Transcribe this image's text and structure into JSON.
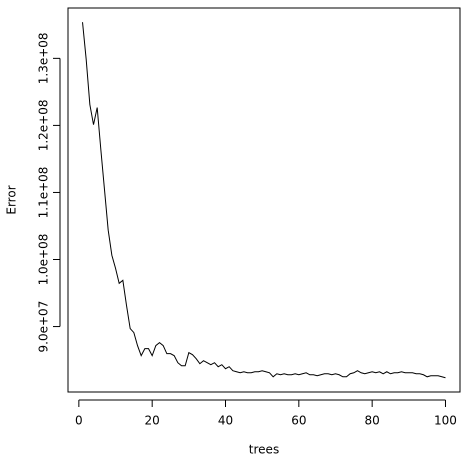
{
  "chart_data": {
    "type": "line",
    "x_label": "trees",
    "y_label": "Error",
    "x": [
      1,
      2,
      3,
      4,
      5,
      6,
      7,
      8,
      9,
      10,
      11,
      12,
      13,
      14,
      15,
      16,
      17,
      18,
      19,
      20,
      21,
      22,
      23,
      24,
      25,
      26,
      27,
      28,
      29,
      30,
      31,
      32,
      33,
      34,
      35,
      36,
      37,
      38,
      39,
      40,
      41,
      42,
      43,
      44,
      45,
      46,
      47,
      48,
      49,
      50,
      51,
      52,
      53,
      54,
      55,
      56,
      57,
      58,
      59,
      60,
      61,
      62,
      63,
      64,
      65,
      66,
      67,
      68,
      69,
      70,
      71,
      72,
      73,
      74,
      75,
      76,
      77,
      78,
      79,
      80,
      81,
      82,
      83,
      84,
      85,
      86,
      87,
      88,
      89,
      90,
      91,
      92,
      93,
      94,
      95,
      96,
      97,
      98,
      99,
      100
    ],
    "series": [
      {
        "color": "#000000",
        "values": [
          135390000.0,
          129850000.0,
          123110000.0,
          120110000.0,
          122660000.0,
          116370000.0,
          110380000.0,
          104390000.0,
          100640000.0,
          98690000.0,
          96450000.0,
          96890000.0,
          93150000.0,
          89700000.0,
          89100000.0,
          87160000.0,
          85660000.0,
          86710000.0,
          86710000.0,
          85660000.0,
          87160000.0,
          87600000.0,
          87160000.0,
          85960000.0,
          85960000.0,
          85660000.0,
          84610000.0,
          84160000.0,
          84160000.0,
          86110000.0,
          85810000.0,
          85210000.0,
          84460000.0,
          84910000.0,
          84610000.0,
          84310000.0,
          84610000.0,
          84010000.0,
          84310000.0,
          83710000.0,
          84010000.0,
          83410000.0,
          83260000.0,
          83110000.0,
          83260000.0,
          83110000.0,
          83110000.0,
          83260000.0,
          83260000.0,
          83410000.0,
          83260000.0,
          83110000.0,
          82510000.0,
          82960000.0,
          82810000.0,
          82960000.0,
          82810000.0,
          82810000.0,
          82960000.0,
          82810000.0,
          82960000.0,
          83110000.0,
          82810000.0,
          82810000.0,
          82660000.0,
          82810000.0,
          82960000.0,
          82960000.0,
          82810000.0,
          82960000.0,
          82810000.0,
          82510000.0,
          82510000.0,
          82960000.0,
          83110000.0,
          83410000.0,
          83110000.0,
          82960000.0,
          83110000.0,
          83260000.0,
          83110000.0,
          83260000.0,
          82960000.0,
          83260000.0,
          82960000.0,
          83110000.0,
          83110000.0,
          83260000.0,
          83110000.0,
          83110000.0,
          83110000.0,
          82960000.0,
          82960000.0,
          82810000.0,
          82510000.0,
          82660000.0,
          82660000.0,
          82660000.0,
          82510000.0,
          82360000.0
        ]
      }
    ],
    "xlim": [
      -2.96,
      103.96
    ],
    "ylim": [
      80240000.0,
      137510000.0
    ],
    "xticks": [
      0,
      20,
      40,
      60,
      80,
      100
    ],
    "yticks": [
      {
        "value": 90000000.0,
        "label": "9.0e+07"
      },
      {
        "value": 100000000.0,
        "label": "1.0e+08"
      },
      {
        "value": 110000000.0,
        "label": "1.1e+08"
      },
      {
        "value": 120000000.0,
        "label": "1.2e+08"
      },
      {
        "value": 130000000.0,
        "label": "1.3e+08"
      }
    ]
  }
}
